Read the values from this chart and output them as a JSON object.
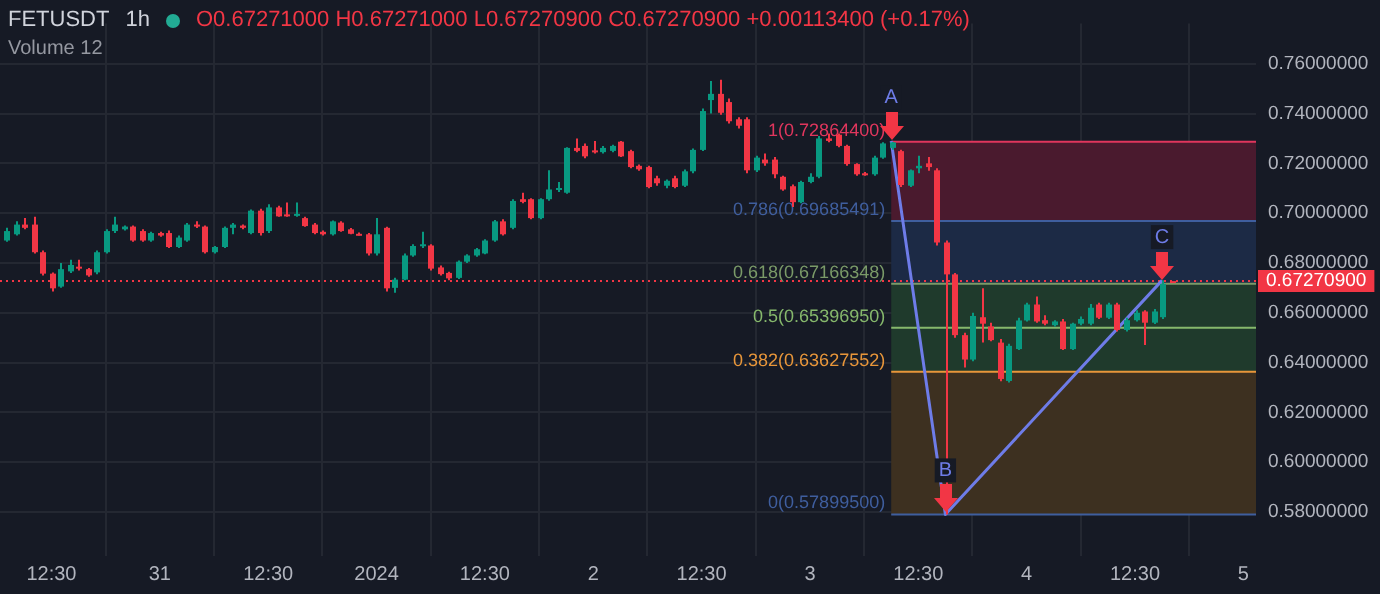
{
  "chart_data": {
    "type": "candlestick",
    "title": "FETUSDT",
    "subtitle": "1h",
    "annotations": [
      "O0.67271000 H0.67271000 L0.67270900 C0.67270900 +0.00113400 (+0.17%)",
      "Volume 12",
      {
        "text": "A",
        "x": "2024-01-03T09:30",
        "y": 0.7286
      },
      {
        "text": "B",
        "x": "2024-01-03T15:30",
        "y": 0.579
      },
      {
        "text": "C",
        "x": "2024-01-04T15:30",
        "y": 0.6727
      }
    ],
    "x": [
      "2023-12-30T07:30",
      "2023-12-30T08:30",
      "2023-12-30T09:30",
      "2023-12-30T10:30",
      "2023-12-30T11:30",
      "2023-12-30T12:30",
      "2023-12-30T13:30",
      "2023-12-30T14:30",
      "2023-12-30T15:30",
      "2023-12-30T16:30",
      "2023-12-30T17:30",
      "2023-12-30T18:30",
      "2023-12-30T19:30",
      "2023-12-30T20:30",
      "2023-12-30T21:30",
      "2023-12-30T22:30",
      "2023-12-30T23:30",
      "2023-12-31T00:30",
      "2023-12-31T01:30",
      "2023-12-31T02:30",
      "2023-12-31T03:30",
      "2023-12-31T04:30",
      "2023-12-31T05:30",
      "2023-12-31T06:30",
      "2023-12-31T07:30",
      "2023-12-31T08:30",
      "2023-12-31T09:30",
      "2023-12-31T10:30",
      "2023-12-31T11:30",
      "2023-12-31T12:30",
      "2023-12-31T13:30",
      "2023-12-31T14:30",
      "2023-12-31T15:30",
      "2023-12-31T16:30",
      "2023-12-31T17:30",
      "2023-12-31T18:30",
      "2023-12-31T19:30",
      "2023-12-31T20:30",
      "2023-12-31T21:30",
      "2023-12-31T22:30",
      "2023-12-31T23:30",
      "2024-01-01T00:30",
      "2024-01-01T01:30",
      "2024-01-01T02:30",
      "2024-01-01T03:30",
      "2024-01-01T04:30",
      "2024-01-01T05:30",
      "2024-01-01T06:30",
      "2024-01-01T07:30",
      "2024-01-01T08:30",
      "2024-01-01T09:30",
      "2024-01-01T10:30",
      "2024-01-01T11:30",
      "2024-01-01T12:30",
      "2024-01-01T13:30",
      "2024-01-01T14:30",
      "2024-01-01T15:30",
      "2024-01-01T16:30",
      "2024-01-01T17:30",
      "2024-01-01T18:30",
      "2024-01-01T19:30",
      "2024-01-01T20:30",
      "2024-01-01T21:30",
      "2024-01-01T22:30",
      "2024-01-01T23:30",
      "2024-01-02T00:30",
      "2024-01-02T01:30",
      "2024-01-02T02:30",
      "2024-01-02T03:30",
      "2024-01-02T04:30",
      "2024-01-02T05:30",
      "2024-01-02T06:30",
      "2024-01-02T07:30",
      "2024-01-02T08:30",
      "2024-01-02T09:30",
      "2024-01-02T10:30",
      "2024-01-02T11:30",
      "2024-01-02T12:30",
      "2024-01-02T13:30",
      "2024-01-02T14:30",
      "2024-01-02T15:30",
      "2024-01-02T16:30",
      "2024-01-02T17:30",
      "2024-01-02T18:30",
      "2024-01-02T19:30",
      "2024-01-02T20:30",
      "2024-01-02T21:30",
      "2024-01-02T22:30",
      "2024-01-02T23:30",
      "2024-01-03T00:30",
      "2024-01-03T01:30",
      "2024-01-03T02:30",
      "2024-01-03T03:30",
      "2024-01-03T04:30",
      "2024-01-03T05:30",
      "2024-01-03T06:30",
      "2024-01-03T07:30",
      "2024-01-03T08:30",
      "2024-01-03T09:30",
      "2024-01-03T10:30",
      "2024-01-03T11:30",
      "2024-01-03T12:30",
      "2024-01-03T13:30",
      "2024-01-03T14:30",
      "2024-01-03T15:30",
      "2024-01-03T16:30",
      "2024-01-03T17:30",
      "2024-01-03T18:30",
      "2024-01-03T19:30",
      "2024-01-03T20:30",
      "2024-01-03T21:30",
      "2024-01-03T22:30",
      "2024-01-03T23:30",
      "2024-01-04T00:30",
      "2024-01-04T01:30",
      "2024-01-04T02:30",
      "2024-01-04T03:30",
      "2024-01-04T04:30",
      "2024-01-04T05:30",
      "2024-01-04T06:30",
      "2024-01-04T07:30",
      "2024-01-04T08:30",
      "2024-01-04T09:30",
      "2024-01-04T10:30",
      "2024-01-04T11:30",
      "2024-01-04T12:30",
      "2024-01-04T13:30",
      "2024-01-04T14:30",
      "2024-01-04T15:30",
      "2024-01-04T16:30"
    ],
    "ohlc": [
      [
        0.689,
        0.6941,
        0.6885,
        0.6928
      ],
      [
        0.6915,
        0.6967,
        0.691,
        0.6954
      ],
      [
        0.6954,
        0.698,
        0.6935,
        0.6941
      ],
      [
        0.6954,
        0.6985,
        0.6838,
        0.6843
      ],
      [
        0.6843,
        0.685,
        0.675,
        0.6757
      ],
      [
        0.6757,
        0.6762,
        0.6685,
        0.6698
      ],
      [
        0.6705,
        0.68,
        0.67,
        0.6775
      ],
      [
        0.6766,
        0.6813,
        0.676,
        0.6792
      ],
      [
        0.6785,
        0.6813,
        0.677,
        0.6777
      ],
      [
        0.6775,
        0.678,
        0.6745,
        0.675
      ],
      [
        0.6762,
        0.685,
        0.6755,
        0.6843
      ],
      [
        0.6843,
        0.6935,
        0.6838,
        0.6928
      ],
      [
        0.6928,
        0.6985,
        0.692,
        0.6954
      ],
      [
        0.6935,
        0.695,
        0.693,
        0.6946
      ],
      [
        0.6946,
        0.695,
        0.6885,
        0.689
      ],
      [
        0.6928,
        0.6935,
        0.6885,
        0.689
      ],
      [
        0.689,
        0.6925,
        0.6885,
        0.692
      ],
      [
        0.692,
        0.6925,
        0.6905,
        0.691
      ],
      [
        0.692,
        0.693,
        0.686,
        0.6864
      ],
      [
        0.6864,
        0.691,
        0.686,
        0.6902
      ],
      [
        0.689,
        0.696,
        0.6885,
        0.6954
      ],
      [
        0.6954,
        0.6967,
        0.694,
        0.6946
      ],
      [
        0.6946,
        0.695,
        0.6838,
        0.6843
      ],
      [
        0.6843,
        0.6868,
        0.6838,
        0.6864
      ],
      [
        0.6864,
        0.6946,
        0.686,
        0.6941
      ],
      [
        0.6941,
        0.696,
        0.6915,
        0.6954
      ],
      [
        0.695,
        0.6954,
        0.6935,
        0.6941
      ],
      [
        0.692,
        0.7015,
        0.6915,
        0.701
      ],
      [
        0.701,
        0.7018,
        0.691,
        0.692
      ],
      [
        0.6928,
        0.7036,
        0.692,
        0.7023
      ],
      [
        0.7023,
        0.703,
        0.6985,
        0.6987
      ],
      [
        0.6995,
        0.7043,
        0.6985,
        0.699
      ],
      [
        0.6992,
        0.7043,
        0.6985,
        0.6997
      ],
      [
        0.698,
        0.6985,
        0.6945,
        0.6948
      ],
      [
        0.6954,
        0.696,
        0.6915,
        0.692
      ],
      [
        0.6925,
        0.693,
        0.691,
        0.6915
      ],
      [
        0.6915,
        0.697,
        0.691,
        0.6967
      ],
      [
        0.6962,
        0.6967,
        0.6925,
        0.6928
      ],
      [
        0.6935,
        0.694,
        0.6915,
        0.6917
      ],
      [
        0.6917,
        0.6922,
        0.691,
        0.6912
      ],
      [
        0.6915,
        0.692,
        0.683,
        0.6838
      ],
      [
        0.6838,
        0.698,
        0.683,
        0.6915
      ],
      [
        0.6941,
        0.6945,
        0.6685,
        0.6698
      ],
      [
        0.67,
        0.674,
        0.668,
        0.6733
      ],
      [
        0.6733,
        0.6838,
        0.673,
        0.683
      ],
      [
        0.683,
        0.6875,
        0.6825,
        0.6868
      ],
      [
        0.6868,
        0.6925,
        0.686,
        0.6875
      ],
      [
        0.687,
        0.6875,
        0.677,
        0.6777
      ],
      [
        0.6782,
        0.679,
        0.675,
        0.6755
      ],
      [
        0.676,
        0.6765,
        0.673,
        0.6738
      ],
      [
        0.674,
        0.681,
        0.6735,
        0.6805
      ],
      [
        0.6805,
        0.6835,
        0.68,
        0.683
      ],
      [
        0.683,
        0.686,
        0.6825,
        0.6855
      ],
      [
        0.6838,
        0.6895,
        0.6835,
        0.689
      ],
      [
        0.689,
        0.6972,
        0.6885,
        0.6967
      ],
      [
        0.6967,
        0.6975,
        0.691,
        0.6915
      ],
      [
        0.6941,
        0.7056,
        0.6935,
        0.7049
      ],
      [
        0.7056,
        0.7082,
        0.704,
        0.7045
      ],
      [
        0.7056,
        0.706,
        0.6975,
        0.698
      ],
      [
        0.698,
        0.706,
        0.6975,
        0.7056
      ],
      [
        0.7056,
        0.7172,
        0.705,
        0.7095
      ],
      [
        0.7095,
        0.7125,
        0.7085,
        0.7101
      ],
      [
        0.7082,
        0.7265,
        0.7078,
        0.7262
      ],
      [
        0.7262,
        0.73,
        0.7245,
        0.725
      ],
      [
        0.727,
        0.728,
        0.722,
        0.7228
      ],
      [
        0.7252,
        0.729,
        0.724,
        0.7245
      ],
      [
        0.7245,
        0.727,
        0.724,
        0.7262
      ],
      [
        0.725,
        0.7275,
        0.7245,
        0.727
      ],
      [
        0.7287,
        0.729,
        0.7225,
        0.7228
      ],
      [
        0.7249,
        0.7255,
        0.718,
        0.7185
      ],
      [
        0.719,
        0.7195,
        0.717,
        0.7176
      ],
      [
        0.7185,
        0.719,
        0.71,
        0.7105
      ],
      [
        0.714,
        0.715,
        0.711,
        0.712
      ],
      [
        0.711,
        0.7135,
        0.71,
        0.713
      ],
      [
        0.714,
        0.715,
        0.71,
        0.7105
      ],
      [
        0.711,
        0.7175,
        0.7105,
        0.7168
      ],
      [
        0.7168,
        0.726,
        0.716,
        0.7254
      ],
      [
        0.7254,
        0.742,
        0.725,
        0.741
      ],
      [
        0.7454,
        0.7531,
        0.74,
        0.7479
      ],
      [
        0.7479,
        0.7536,
        0.7395,
        0.7403
      ],
      [
        0.7446,
        0.746,
        0.736,
        0.7369
      ],
      [
        0.7377,
        0.7385,
        0.734,
        0.7351
      ],
      [
        0.7377,
        0.7385,
        0.716,
        0.7172
      ],
      [
        0.7172,
        0.723,
        0.7165,
        0.7223
      ],
      [
        0.7215,
        0.724,
        0.719,
        0.72
      ],
      [
        0.7215,
        0.7225,
        0.714,
        0.7156
      ],
      [
        0.7146,
        0.715,
        0.709,
        0.7095
      ],
      [
        0.7108,
        0.7115,
        0.7025,
        0.7044
      ],
      [
        0.7044,
        0.713,
        0.704,
        0.7125
      ],
      [
        0.7125,
        0.716,
        0.712,
        0.7146
      ],
      [
        0.7146,
        0.731,
        0.714,
        0.73
      ],
      [
        0.73,
        0.732,
        0.7285,
        0.729
      ],
      [
        0.7315,
        0.732,
        0.7265,
        0.727
      ],
      [
        0.727,
        0.7275,
        0.719,
        0.7197
      ],
      [
        0.7197,
        0.72,
        0.715,
        0.7156
      ],
      [
        0.716,
        0.7165,
        0.715,
        0.7155
      ],
      [
        0.7156,
        0.723,
        0.715,
        0.7223
      ],
      [
        0.7223,
        0.7285,
        0.7218,
        0.728
      ],
      [
        0.7262,
        0.7286,
        0.7255,
        0.7284
      ],
      [
        0.7249,
        0.7255,
        0.7105,
        0.7113
      ],
      [
        0.711,
        0.7175,
        0.7105,
        0.7172
      ],
      [
        0.718,
        0.723,
        0.716,
        0.719
      ],
      [
        0.72,
        0.7225,
        0.717,
        0.7185
      ],
      [
        0.7172,
        0.718,
        0.687,
        0.6882
      ],
      [
        0.6882,
        0.689,
        0.579,
        0.6754
      ],
      [
        0.6754,
        0.676,
        0.65,
        0.651
      ],
      [
        0.651,
        0.652,
        0.638,
        0.6412
      ],
      [
        0.6412,
        0.66,
        0.6405,
        0.6587
      ],
      [
        0.6582,
        0.6698,
        0.648,
        0.6556
      ],
      [
        0.6545,
        0.656,
        0.6485,
        0.649
      ],
      [
        0.648,
        0.6495,
        0.6325,
        0.6334
      ],
      [
        0.6326,
        0.6475,
        0.632,
        0.6467
      ],
      [
        0.6454,
        0.658,
        0.645,
        0.6569
      ],
      [
        0.6569,
        0.664,
        0.6565,
        0.6633
      ],
      [
        0.6633,
        0.6665,
        0.656,
        0.6565
      ],
      [
        0.657,
        0.659,
        0.655,
        0.6556
      ],
      [
        0.655,
        0.657,
        0.6545,
        0.6565
      ],
      [
        0.6565,
        0.6575,
        0.645,
        0.6454
      ],
      [
        0.6454,
        0.656,
        0.645,
        0.6556
      ],
      [
        0.6556,
        0.6585,
        0.655,
        0.6575
      ],
      [
        0.6556,
        0.6635,
        0.655,
        0.662
      ],
      [
        0.6633,
        0.664,
        0.6575,
        0.658
      ],
      [
        0.658,
        0.664,
        0.6575,
        0.6633
      ],
      [
        0.6633,
        0.664,
        0.6525,
        0.6531
      ],
      [
        0.6531,
        0.658,
        0.6525,
        0.657
      ],
      [
        0.657,
        0.661,
        0.6565,
        0.66
      ],
      [
        0.6605,
        0.661,
        0.647,
        0.656
      ],
      [
        0.656,
        0.6615,
        0.6555,
        0.6605
      ],
      [
        0.6582,
        0.673,
        0.6575,
        0.671575
      ],
      [
        0.67271,
        0.67271,
        0.672709,
        0.672709
      ]
    ],
    "series": [
      {
        "type": "line",
        "color": "#6e7ce8",
        "x": [
          "2024-01-03T09:30",
          "2024-01-03T15:30",
          "2024-01-04T15:30"
        ],
        "values": [
          0.729,
          0.579,
          0.673
        ]
      }
    ],
    "bands": [
      {
        "axis": "y",
        "from": 0.69685491,
        "to": 0.728644,
        "color": "#4a1a2e"
      },
      {
        "axis": "y",
        "from": 0.67166348,
        "to": 0.69685491,
        "color": "#1c2a45"
      },
      {
        "axis": "y",
        "from": 0.6539695,
        "to": 0.67166348,
        "color": "#1f3a2c"
      },
      {
        "axis": "y",
        "from": 0.63627552,
        "to": 0.6539695,
        "color": "#1f3a2c"
      },
      {
        "axis": "y",
        "from": 0.578995,
        "to": 0.63627552,
        "color": "#3d3020"
      }
    ],
    "ref_lines": [
      {
        "axis": "y",
        "value": 0.728644,
        "label": "1(0.72864400)",
        "color": "#e0365d",
        "line_style": "solid"
      },
      {
        "axis": "y",
        "value": 0.69685491,
        "label": "0.786(0.69685491)",
        "color": "#3f5e9e",
        "line_style": "solid"
      },
      {
        "axis": "y",
        "value": 0.67166348,
        "label": "0.618(0.67166348)",
        "color": "#7a9a68",
        "line_style": "solid"
      },
      {
        "axis": "y",
        "value": 0.6539695,
        "label": "0.5(0.65396950)",
        "color": "#86b86c",
        "line_style": "solid"
      },
      {
        "axis": "y",
        "value": 0.63627552,
        "label": "0.382(0.63627552)",
        "color": "#e8963a",
        "line_style": "solid"
      },
      {
        "axis": "y",
        "value": 0.578995,
        "label": "0(0.57899500)",
        "color": "#3f5e9e",
        "line_style": "solid"
      },
      {
        "axis": "y",
        "value": 0.672709,
        "label": "0.67270900",
        "color": "#f23645",
        "line_style": "dotted"
      }
    ],
    "xlim": [
      "2023-12-30T06:48",
      "2024-01-05T01:54"
    ],
    "xticks": [
      {
        "value": "2023-12-30T12:30",
        "label": "12:30"
      },
      {
        "value": "2023-12-31T00:30",
        "label": "31"
      },
      {
        "value": "2023-12-31T12:30",
        "label": "12:30"
      },
      {
        "value": "2024-01-01T00:30",
        "label": "2024"
      },
      {
        "value": "2024-01-01T12:30",
        "label": "12:30"
      },
      {
        "value": "2024-01-02T00:30",
        "label": "2"
      },
      {
        "value": "2024-01-02T12:30",
        "label": "12:30"
      },
      {
        "value": "2024-01-03T00:30",
        "label": "3"
      },
      {
        "value": "2024-01-03T12:30",
        "label": "12:30"
      },
      {
        "value": "2024-01-04T00:30",
        "label": "4"
      },
      {
        "value": "2024-01-04T12:30",
        "label": "12:30"
      },
      {
        "value": "2024-01-05T00:30",
        "label": "5"
      }
    ],
    "ylim": [
      0.5623,
      0.7762
    ],
    "yticks": [
      {
        "value": 0.58,
        "label": "0.58000000"
      },
      {
        "value": 0.6,
        "label": "0.60000000"
      },
      {
        "value": 0.62,
        "label": "0.62000000"
      },
      {
        "value": 0.64,
        "label": "0.64000000"
      },
      {
        "value": 0.66,
        "label": "0.66000000"
      },
      {
        "value": 0.68,
        "label": "0.68000000"
      },
      {
        "value": 0.7,
        "label": "0.70000000"
      },
      {
        "value": 0.72,
        "label": "0.72000000"
      },
      {
        "value": 0.74,
        "label": "0.74000000"
      },
      {
        "value": 0.76,
        "label": "0.76000000"
      }
    ],
    "grid": true,
    "legend": false,
    "marker": "none"
  }
}
